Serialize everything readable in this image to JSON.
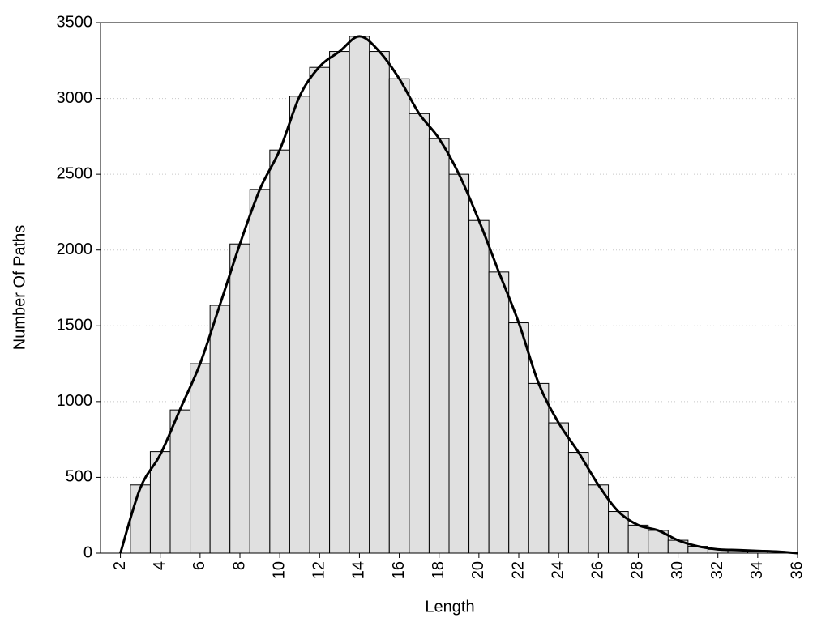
{
  "chart_data": {
    "type": "histogram",
    "x_label": "Length",
    "y_label": "Number Of Paths",
    "bins": [
      2.5,
      3.5,
      4.5,
      5.5,
      6.5,
      7.5,
      8.5,
      9.5,
      10.5,
      11.5,
      12.5,
      13.5,
      14.5,
      15.5,
      16.5,
      17.5,
      18.5,
      19.5,
      20.5,
      21.5,
      22.5,
      23.5,
      24.5,
      25.5,
      26.5,
      27.5,
      28.5,
      29.5,
      30.5,
      31.5,
      32.5,
      33.5,
      34.5,
      35.5
    ],
    "values": [
      450,
      670,
      945,
      1250,
      1635,
      2040,
      2400,
      2660,
      3015,
      3205,
      3310,
      3410,
      3310,
      3130,
      2900,
      2735,
      2500,
      2195,
      1855,
      1520,
      1120,
      860,
      665,
      450,
      275,
      185,
      150,
      85,
      45,
      25,
      20,
      15,
      10
    ],
    "color": "#e0e0e0",
    "curve": {
      "color": "#000000",
      "x": [
        2,
        3,
        4,
        5,
        6,
        7,
        8,
        9,
        10,
        11,
        12,
        13,
        14,
        15,
        16,
        17,
        18,
        19,
        20,
        21,
        22,
        23,
        24,
        25,
        26,
        27,
        28,
        29,
        30,
        31,
        32,
        33,
        34,
        35,
        36
      ],
      "values": [
        0,
        430,
        650,
        950,
        1250,
        1640,
        2040,
        2400,
        2660,
        3015,
        3210,
        3310,
        3410,
        3310,
        3130,
        2900,
        2735,
        2500,
        2195,
        1855,
        1520,
        1120,
        860,
        665,
        450,
        275,
        185,
        150,
        85,
        45,
        25,
        20,
        15,
        10,
        0
      ]
    },
    "xlim": [
      1,
      36
    ],
    "xticks": [
      2,
      4,
      6,
      8,
      10,
      12,
      14,
      16,
      18,
      20,
      22,
      24,
      26,
      28,
      30,
      32,
      34,
      36
    ],
    "ylim": [
      0,
      3500
    ],
    "yticks": [
      0,
      500,
      1000,
      1500,
      2000,
      2500,
      3000,
      3500
    ],
    "grid": true
  }
}
